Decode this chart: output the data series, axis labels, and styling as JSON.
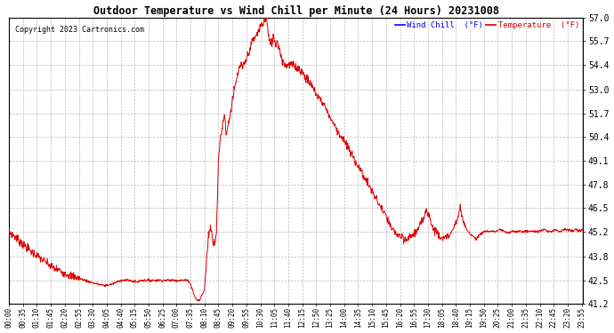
{
  "title": "Outdoor Temperature vs Wind Chill per Minute (24 Hours) 20231008",
  "copyright_text": "Copyright 2023 Cartronics.com",
  "legend_wind_chill": "Wind Chill  (°F)",
  "legend_temperature": "Temperature  (°F)",
  "background_color": "#ffffff",
  "grid_color": "#bbbbbb",
  "line_color": "#dd0000",
  "title_color": "#000000",
  "copyright_color": "#000000",
  "legend_wind_chill_color": "#0000ff",
  "legend_temperature_color": "#cc0000",
  "ylim_min": 41.2,
  "ylim_max": 57.0,
  "yticks": [
    41.2,
    42.5,
    43.8,
    45.2,
    46.5,
    47.8,
    49.1,
    50.4,
    51.7,
    53.0,
    54.4,
    55.7,
    57.0
  ],
  "xtick_labels": [
    "00:00",
    "00:35",
    "01:10",
    "01:45",
    "02:20",
    "02:55",
    "03:30",
    "04:05",
    "04:40",
    "05:15",
    "05:50",
    "06:25",
    "07:00",
    "07:35",
    "08:10",
    "08:45",
    "09:20",
    "09:55",
    "10:30",
    "11:05",
    "11:40",
    "12:15",
    "12:50",
    "13:25",
    "14:00",
    "14:35",
    "15:10",
    "15:45",
    "16:20",
    "16:55",
    "17:30",
    "18:05",
    "18:40",
    "19:15",
    "19:50",
    "20:25",
    "21:00",
    "21:35",
    "22:10",
    "22:45",
    "23:20",
    "23:55"
  ],
  "waypoints": [
    [
      0,
      45.2
    ],
    [
      20,
      44.8
    ],
    [
      50,
      44.2
    ],
    [
      80,
      43.7
    ],
    [
      110,
      43.2
    ],
    [
      150,
      42.8
    ],
    [
      190,
      42.5
    ],
    [
      220,
      42.3
    ],
    [
      240,
      42.2
    ],
    [
      260,
      42.3
    ],
    [
      280,
      42.5
    ],
    [
      300,
      42.5
    ],
    [
      320,
      42.4
    ],
    [
      330,
      42.5
    ],
    [
      350,
      42.5
    ],
    [
      370,
      42.5
    ],
    [
      390,
      42.5
    ],
    [
      410,
      42.5
    ],
    [
      430,
      42.5
    ],
    [
      450,
      42.5
    ],
    [
      460,
      42.0
    ],
    [
      465,
      41.6
    ],
    [
      468,
      41.5
    ],
    [
      472,
      41.4
    ],
    [
      475,
      41.4
    ],
    [
      478,
      41.4
    ],
    [
      480,
      41.5
    ],
    [
      490,
      42.0
    ],
    [
      495,
      43.5
    ],
    [
      500,
      45.0
    ],
    [
      505,
      45.5
    ],
    [
      510,
      44.8
    ],
    [
      515,
      44.5
    ],
    [
      520,
      45.2
    ],
    [
      525,
      49.1
    ],
    [
      530,
      50.4
    ],
    [
      535,
      51.0
    ],
    [
      540,
      51.7
    ],
    [
      545,
      50.5
    ],
    [
      550,
      51.2
    ],
    [
      555,
      51.7
    ],
    [
      560,
      52.5
    ],
    [
      565,
      53.0
    ],
    [
      570,
      53.5
    ],
    [
      575,
      54.0
    ],
    [
      580,
      54.4
    ],
    [
      585,
      54.2
    ],
    [
      590,
      54.4
    ],
    [
      600,
      55.0
    ],
    [
      610,
      55.7
    ],
    [
      620,
      56.0
    ],
    [
      630,
      56.5
    ],
    [
      640,
      56.8
    ],
    [
      645,
      57.0
    ],
    [
      648,
      56.5
    ],
    [
      650,
      56.0
    ],
    [
      653,
      55.7
    ],
    [
      655,
      55.5
    ],
    [
      660,
      55.7
    ],
    [
      663,
      56.0
    ],
    [
      665,
      55.8
    ],
    [
      668,
      55.5
    ],
    [
      672,
      55.7
    ],
    [
      675,
      55.5
    ],
    [
      678,
      55.3
    ],
    [
      680,
      55.0
    ],
    [
      683,
      54.8
    ],
    [
      686,
      54.7
    ],
    [
      688,
      54.5
    ],
    [
      690,
      54.4
    ],
    [
      695,
      54.4
    ],
    [
      700,
      54.4
    ],
    [
      705,
      54.4
    ],
    [
      710,
      54.4
    ],
    [
      715,
      54.3
    ],
    [
      720,
      54.3
    ],
    [
      725,
      54.2
    ],
    [
      730,
      54.1
    ],
    [
      735,
      54.0
    ],
    [
      740,
      53.8
    ],
    [
      750,
      53.5
    ],
    [
      760,
      53.2
    ],
    [
      770,
      52.8
    ],
    [
      780,
      52.5
    ],
    [
      790,
      52.2
    ],
    [
      800,
      51.7
    ],
    [
      810,
      51.3
    ],
    [
      820,
      50.9
    ],
    [
      830,
      50.5
    ],
    [
      840,
      50.2
    ],
    [
      850,
      49.8
    ],
    [
      860,
      49.4
    ],
    [
      870,
      49.0
    ],
    [
      880,
      48.6
    ],
    [
      890,
      48.2
    ],
    [
      900,
      47.8
    ],
    [
      910,
      47.4
    ],
    [
      920,
      47.0
    ],
    [
      930,
      46.6
    ],
    [
      940,
      46.2
    ],
    [
      950,
      45.8
    ],
    [
      955,
      45.5
    ],
    [
      960,
      45.3
    ],
    [
      965,
      45.2
    ],
    [
      970,
      45.1
    ],
    [
      975,
      45.0
    ],
    [
      980,
      44.9
    ],
    [
      985,
      44.8
    ],
    [
      990,
      44.7
    ],
    [
      995,
      44.7
    ],
    [
      1000,
      44.8
    ],
    [
      1005,
      44.9
    ],
    [
      1010,
      45.0
    ],
    [
      1015,
      45.1
    ],
    [
      1020,
      45.2
    ],
    [
      1025,
      45.3
    ],
    [
      1030,
      45.5
    ],
    [
      1035,
      45.7
    ],
    [
      1040,
      46.0
    ],
    [
      1045,
      46.5
    ],
    [
      1048,
      46.4
    ],
    [
      1050,
      46.2
    ],
    [
      1055,
      46.0
    ],
    [
      1058,
      45.7
    ],
    [
      1060,
      45.5
    ],
    [
      1065,
      45.3
    ],
    [
      1070,
      45.2
    ],
    [
      1075,
      45.1
    ],
    [
      1080,
      45.0
    ],
    [
      1085,
      44.9
    ],
    [
      1090,
      44.8
    ],
    [
      1095,
      44.8
    ],
    [
      1100,
      44.9
    ],
    [
      1105,
      45.0
    ],
    [
      1110,
      45.2
    ],
    [
      1115,
      45.4
    ],
    [
      1120,
      45.7
    ],
    [
      1125,
      46.0
    ],
    [
      1130,
      46.5
    ],
    [
      1133,
      46.3
    ],
    [
      1135,
      46.0
    ],
    [
      1138,
      45.8
    ],
    [
      1140,
      45.6
    ],
    [
      1145,
      45.4
    ],
    [
      1150,
      45.2
    ],
    [
      1155,
      45.1
    ],
    [
      1160,
      45.0
    ],
    [
      1165,
      44.9
    ],
    [
      1170,
      44.8
    ],
    [
      1175,
      44.9
    ],
    [
      1180,
      45.0
    ],
    [
      1185,
      45.1
    ],
    [
      1190,
      45.2
    ],
    [
      1195,
      45.2
    ],
    [
      1200,
      45.2
    ],
    [
      1210,
      45.2
    ],
    [
      1220,
      45.2
    ],
    [
      1230,
      45.3
    ],
    [
      1240,
      45.2
    ],
    [
      1250,
      45.1
    ],
    [
      1260,
      45.2
    ],
    [
      1270,
      45.2
    ],
    [
      1280,
      45.2
    ],
    [
      1290,
      45.2
    ],
    [
      1300,
      45.2
    ],
    [
      1310,
      45.2
    ],
    [
      1320,
      45.2
    ],
    [
      1330,
      45.2
    ],
    [
      1340,
      45.3
    ],
    [
      1350,
      45.2
    ],
    [
      1360,
      45.2
    ],
    [
      1370,
      45.3
    ],
    [
      1380,
      45.2
    ],
    [
      1390,
      45.3
    ],
    [
      1400,
      45.3
    ],
    [
      1410,
      45.2
    ],
    [
      1420,
      45.3
    ],
    [
      1430,
      45.2
    ],
    [
      1439,
      45.3
    ]
  ]
}
